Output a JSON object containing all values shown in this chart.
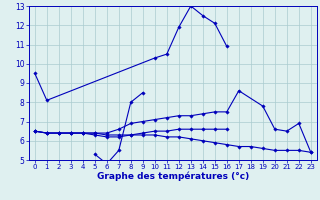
{
  "xlabel": "Graphe des températures (°c)",
  "bg_color": "#dff0f0",
  "line_color": "#0000bb",
  "grid_color": "#aaccd0",
  "xlim": [
    -0.5,
    23.5
  ],
  "ylim": [
    5,
    13
  ],
  "xticks": [
    0,
    1,
    2,
    3,
    4,
    5,
    6,
    7,
    8,
    9,
    10,
    11,
    12,
    13,
    14,
    15,
    16,
    17,
    18,
    19,
    20,
    21,
    22,
    23
  ],
  "yticks": [
    5,
    6,
    7,
    8,
    9,
    10,
    11,
    12,
    13
  ],
  "series": [
    {
      "x": [
        0,
        1,
        10,
        11,
        12,
        13,
        14,
        15,
        16
      ],
      "y": [
        9.5,
        8.1,
        10.3,
        10.5,
        11.9,
        13.0,
        12.5,
        12.1,
        10.9
      ]
    },
    {
      "x": [
        5,
        6,
        7,
        8,
        9
      ],
      "y": [
        5.3,
        4.8,
        5.5,
        8.0,
        8.5
      ]
    },
    {
      "x": [
        0,
        1,
        2,
        3,
        4,
        5,
        6,
        7,
        8,
        9,
        10,
        11,
        12,
        13,
        14,
        15,
        16,
        17,
        19,
        20,
        21,
        22,
        23
      ],
      "y": [
        6.5,
        6.4,
        6.4,
        6.4,
        6.4,
        6.4,
        6.4,
        6.6,
        6.9,
        7.0,
        7.1,
        7.2,
        7.3,
        7.3,
        7.4,
        7.5,
        7.5,
        8.6,
        7.8,
        6.6,
        6.5,
        6.9,
        5.4
      ]
    },
    {
      "x": [
        0,
        1,
        2,
        3,
        4,
        5,
        6,
        7,
        8,
        9,
        10,
        11,
        12,
        13,
        14,
        15,
        16
      ],
      "y": [
        6.5,
        6.4,
        6.4,
        6.4,
        6.4,
        6.4,
        6.3,
        6.3,
        6.3,
        6.4,
        6.5,
        6.5,
        6.6,
        6.6,
        6.6,
        6.6,
        6.6
      ]
    },
    {
      "x": [
        0,
        1,
        2,
        3,
        4,
        5,
        6,
        7,
        8,
        9,
        10,
        11,
        12,
        13,
        14,
        15,
        16,
        17,
        18,
        19,
        20,
        21,
        22,
        23
      ],
      "y": [
        6.5,
        6.4,
        6.4,
        6.4,
        6.4,
        6.3,
        6.2,
        6.2,
        6.3,
        6.3,
        6.3,
        6.2,
        6.2,
        6.1,
        6.0,
        5.9,
        5.8,
        5.7,
        5.7,
        5.6,
        5.5,
        5.5,
        5.5,
        5.4
      ]
    }
  ]
}
